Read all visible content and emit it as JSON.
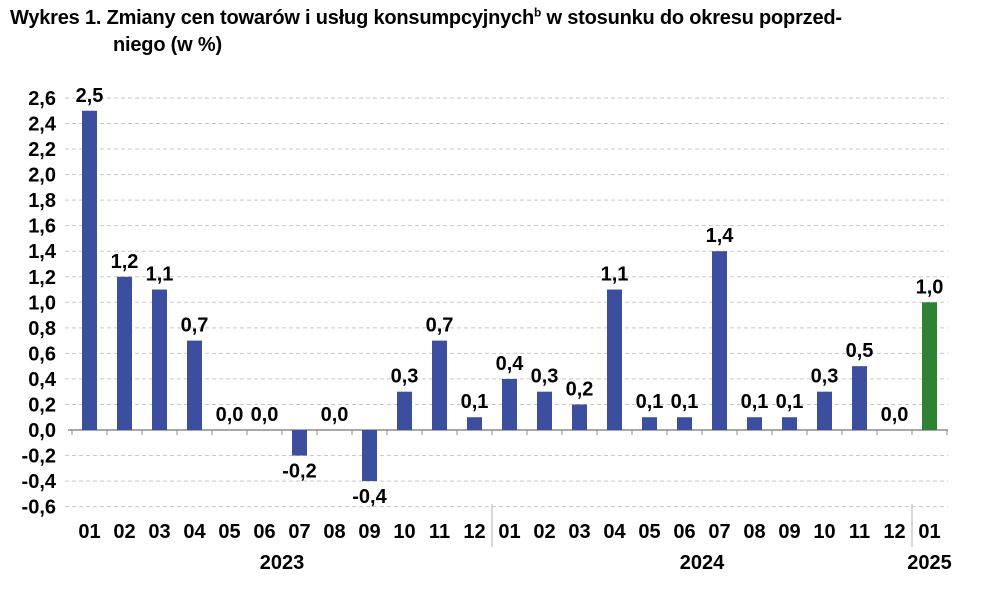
{
  "title": {
    "line1_main": "Wykres 1. Zmiany cen towarów i usług konsumpcyjnych",
    "superscript": "b",
    "line1_rest": " w stosunku do okresu poprzed-",
    "line2": "niego (w %)"
  },
  "chart_data": {
    "type": "bar",
    "title": "Wykres 1. Zmiany cen towarów i usług konsumpcyjnych(b) w stosunku do okresu poprzedniego (w %)",
    "unit": "%",
    "decimal_separator": ",",
    "ylim": [
      -0.6,
      2.6
    ],
    "ytick_step": 0.2,
    "grid": true,
    "legend": "none",
    "colors": {
      "bar_default": "#3B4F9E",
      "bar_highlight": "#2E8234",
      "gridline": "#C9C9C9",
      "axis_line": "#8C8C8C",
      "separator": "#B3B3B3",
      "text": "#000000"
    },
    "groups": [
      {
        "year": "2023",
        "categories": [
          "01",
          "02",
          "03",
          "04",
          "05",
          "06",
          "07",
          "08",
          "09",
          "10",
          "11",
          "12"
        ],
        "values": [
          2.5,
          1.2,
          1.1,
          0.7,
          0.0,
          0.0,
          -0.2,
          0.0,
          -0.4,
          0.3,
          0.7,
          0.1
        ],
        "highlight": false
      },
      {
        "year": "2024",
        "categories": [
          "01",
          "02",
          "03",
          "04",
          "05",
          "06",
          "07",
          "08",
          "09",
          "10",
          "11",
          "12"
        ],
        "values": [
          0.4,
          0.3,
          0.2,
          1.1,
          0.1,
          0.1,
          1.4,
          0.1,
          0.1,
          0.3,
          0.5,
          0.0
        ],
        "highlight": false
      },
      {
        "year": "2025",
        "categories": [
          "01"
        ],
        "values": [
          1.0
        ],
        "highlight": true
      }
    ]
  }
}
